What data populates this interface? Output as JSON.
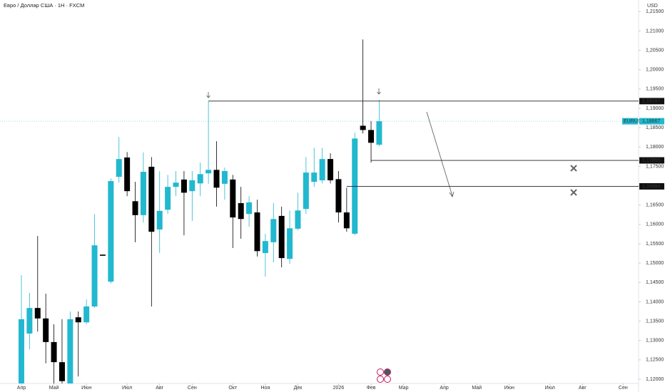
{
  "chart_data": {
    "type": "candlestick",
    "title": "Евро / Доллар США · 1Н · FXCM",
    "y_axis_label": "USD",
    "up_color": "#22b8cf",
    "down_color": "#000000",
    "xlim": [
      -2.63,
      75.9
    ],
    "ylim": [
      1.1189,
      1.218
    ],
    "xticks": [
      {
        "value": 0,
        "label": "Апр"
      },
      {
        "value": 4,
        "label": "Май"
      },
      {
        "value": 8,
        "label": "Июн"
      },
      {
        "value": 13,
        "label": "Июл"
      },
      {
        "value": 17,
        "label": "Авг"
      },
      {
        "value": 21,
        "label": "Сен"
      },
      {
        "value": 26,
        "label": "Окт"
      },
      {
        "value": 30,
        "label": "Ноя"
      },
      {
        "value": 34,
        "label": "Дек"
      },
      {
        "value": 39,
        "label": "2026"
      },
      {
        "value": 43,
        "label": "Фев"
      },
      {
        "value": 47,
        "label": "Мар"
      },
      {
        "value": 52,
        "label": "Апр"
      },
      {
        "value": 56,
        "label": "Май"
      },
      {
        "value": 60,
        "label": "Июн"
      },
      {
        "value": 65,
        "label": "Июл"
      },
      {
        "value": 69,
        "label": "Авг"
      },
      {
        "value": 74,
        "label": "Сен"
      }
    ],
    "yticks": [
      {
        "value": 1.215,
        "label": "1,21500"
      },
      {
        "value": 1.21,
        "label": "1,21000"
      },
      {
        "value": 1.205,
        "label": "1,20500"
      },
      {
        "value": 1.2,
        "label": "1,20000"
      },
      {
        "value": 1.195,
        "label": "1,19500"
      },
      {
        "value": 1.19,
        "label": "1,19000"
      },
      {
        "value": 1.185,
        "label": "1,18500"
      },
      {
        "value": 1.18,
        "label": "1,18000"
      },
      {
        "value": 1.175,
        "label": "1,17500"
      },
      {
        "value": 1.17,
        "label": "1,17000"
      },
      {
        "value": 1.165,
        "label": "1,16500"
      },
      {
        "value": 1.16,
        "label": "1,16000"
      },
      {
        "value": 1.155,
        "label": "1,15500"
      },
      {
        "value": 1.15,
        "label": "1,15000"
      },
      {
        "value": 1.145,
        "label": "1,14500"
      },
      {
        "value": 1.14,
        "label": "1,14000"
      },
      {
        "value": 1.135,
        "label": "1,13500"
      },
      {
        "value": 1.13,
        "label": "1,13000"
      },
      {
        "value": 1.125,
        "label": "1,12500"
      },
      {
        "value": 1.12,
        "label": "1,12000"
      }
    ],
    "x": [
      0,
      1,
      2,
      3,
      4,
      5,
      6,
      7,
      8,
      9,
      10,
      11,
      12,
      13,
      14,
      15,
      16,
      17,
      18,
      19,
      20,
      21,
      22,
      23,
      24,
      25,
      26,
      27,
      28,
      29,
      30,
      31,
      32,
      33,
      34,
      35,
      36,
      37,
      38,
      39,
      40,
      41,
      42,
      43,
      44
    ],
    "open": [
      1.1176,
      1.1318,
      1.1384,
      1.1357,
      1.1296,
      1.1244,
      1.1189,
      1.136,
      1.1347,
      1.1388,
      1.1522,
      1.1452,
      1.1723,
      1.1773,
      1.166,
      1.1624,
      1.1749,
      1.1587,
      1.1638,
      1.1697,
      1.1716,
      1.1686,
      1.1706,
      1.1732,
      1.1741,
      1.1705,
      1.1716,
      1.1655,
      1.1627,
      1.1631,
      1.1526,
      1.1554,
      1.1622,
      1.1511,
      1.1589,
      1.164,
      1.171,
      1.1714,
      1.1769,
      1.1717,
      1.1631,
      1.1576,
      1.1855,
      1.1844,
      1.1806
    ],
    "high": [
      1.1469,
      1.1423,
      1.157,
      1.1421,
      1.1342,
      1.1355,
      1.1375,
      1.1375,
      1.1406,
      1.1627,
      1.1522,
      1.1719,
      1.1826,
      1.1787,
      1.171,
      1.1786,
      1.1774,
      1.1738,
      1.1728,
      1.1738,
      1.1738,
      1.1738,
      1.176,
      1.1919,
      1.1815,
      1.1747,
      1.1728,
      1.1697,
      1.1673,
      1.1664,
      1.1576,
      1.1655,
      1.1646,
      1.1636,
      1.1682,
      1.1774,
      1.1798,
      1.1798,
      1.1784,
      1.1738,
      1.1695,
      1.1837,
      1.2078,
      1.1867,
      1.1922
    ],
    "low": [
      1.1171,
      1.1277,
      1.1323,
      1.1241,
      1.1185,
      1.1176,
      1.1176,
      1.1207,
      1.1342,
      1.1384,
      1.1519,
      1.1447,
      1.1708,
      1.1673,
      1.1554,
      1.1605,
      1.1388,
      1.1526,
      1.1627,
      1.1673,
      1.1572,
      1.1609,
      1.1673,
      1.1705,
      1.1646,
      1.1664,
      1.1539,
      1.1563,
      1.1594,
      1.1517,
      1.1465,
      1.1502,
      1.1489,
      1.1498,
      1.1585,
      1.1627,
      1.1697,
      1.1706,
      1.1706,
      1.1605,
      1.1581,
      1.1572,
      1.1835,
      1.176,
      1.1802
    ],
    "close": [
      1.1355,
      1.1384,
      1.1357,
      1.1296,
      1.1244,
      1.1195,
      1.1355,
      1.1347,
      1.1388,
      1.1546,
      1.1519,
      1.1712,
      1.1769,
      1.1686,
      1.1624,
      1.1736,
      1.1581,
      1.1635,
      1.1697,
      1.1708,
      1.1682,
      1.1714,
      1.173,
      1.1741,
      1.1695,
      1.1738,
      1.1618,
      1.1614,
      1.1657,
      1.1531,
      1.1557,
      1.1614,
      1.1513,
      1.159,
      1.1636,
      1.1734,
      1.1734,
      1.1769,
      1.1714,
      1.1631,
      1.159,
      1.1822,
      1.1844,
      1.1811,
      1.18667
    ],
    "levels": [
      {
        "value": 1.19187,
        "label": "1,19187",
        "from": 23
      },
      {
        "value": 1.17655,
        "label": "1,17655",
        "from": 43
      },
      {
        "value": 1.16984,
        "label": "1,16984",
        "from": 40
      }
    ],
    "last_price": {
      "symbol": "EURUSD",
      "value": 1.18667,
      "label": "1,18667"
    }
  }
}
